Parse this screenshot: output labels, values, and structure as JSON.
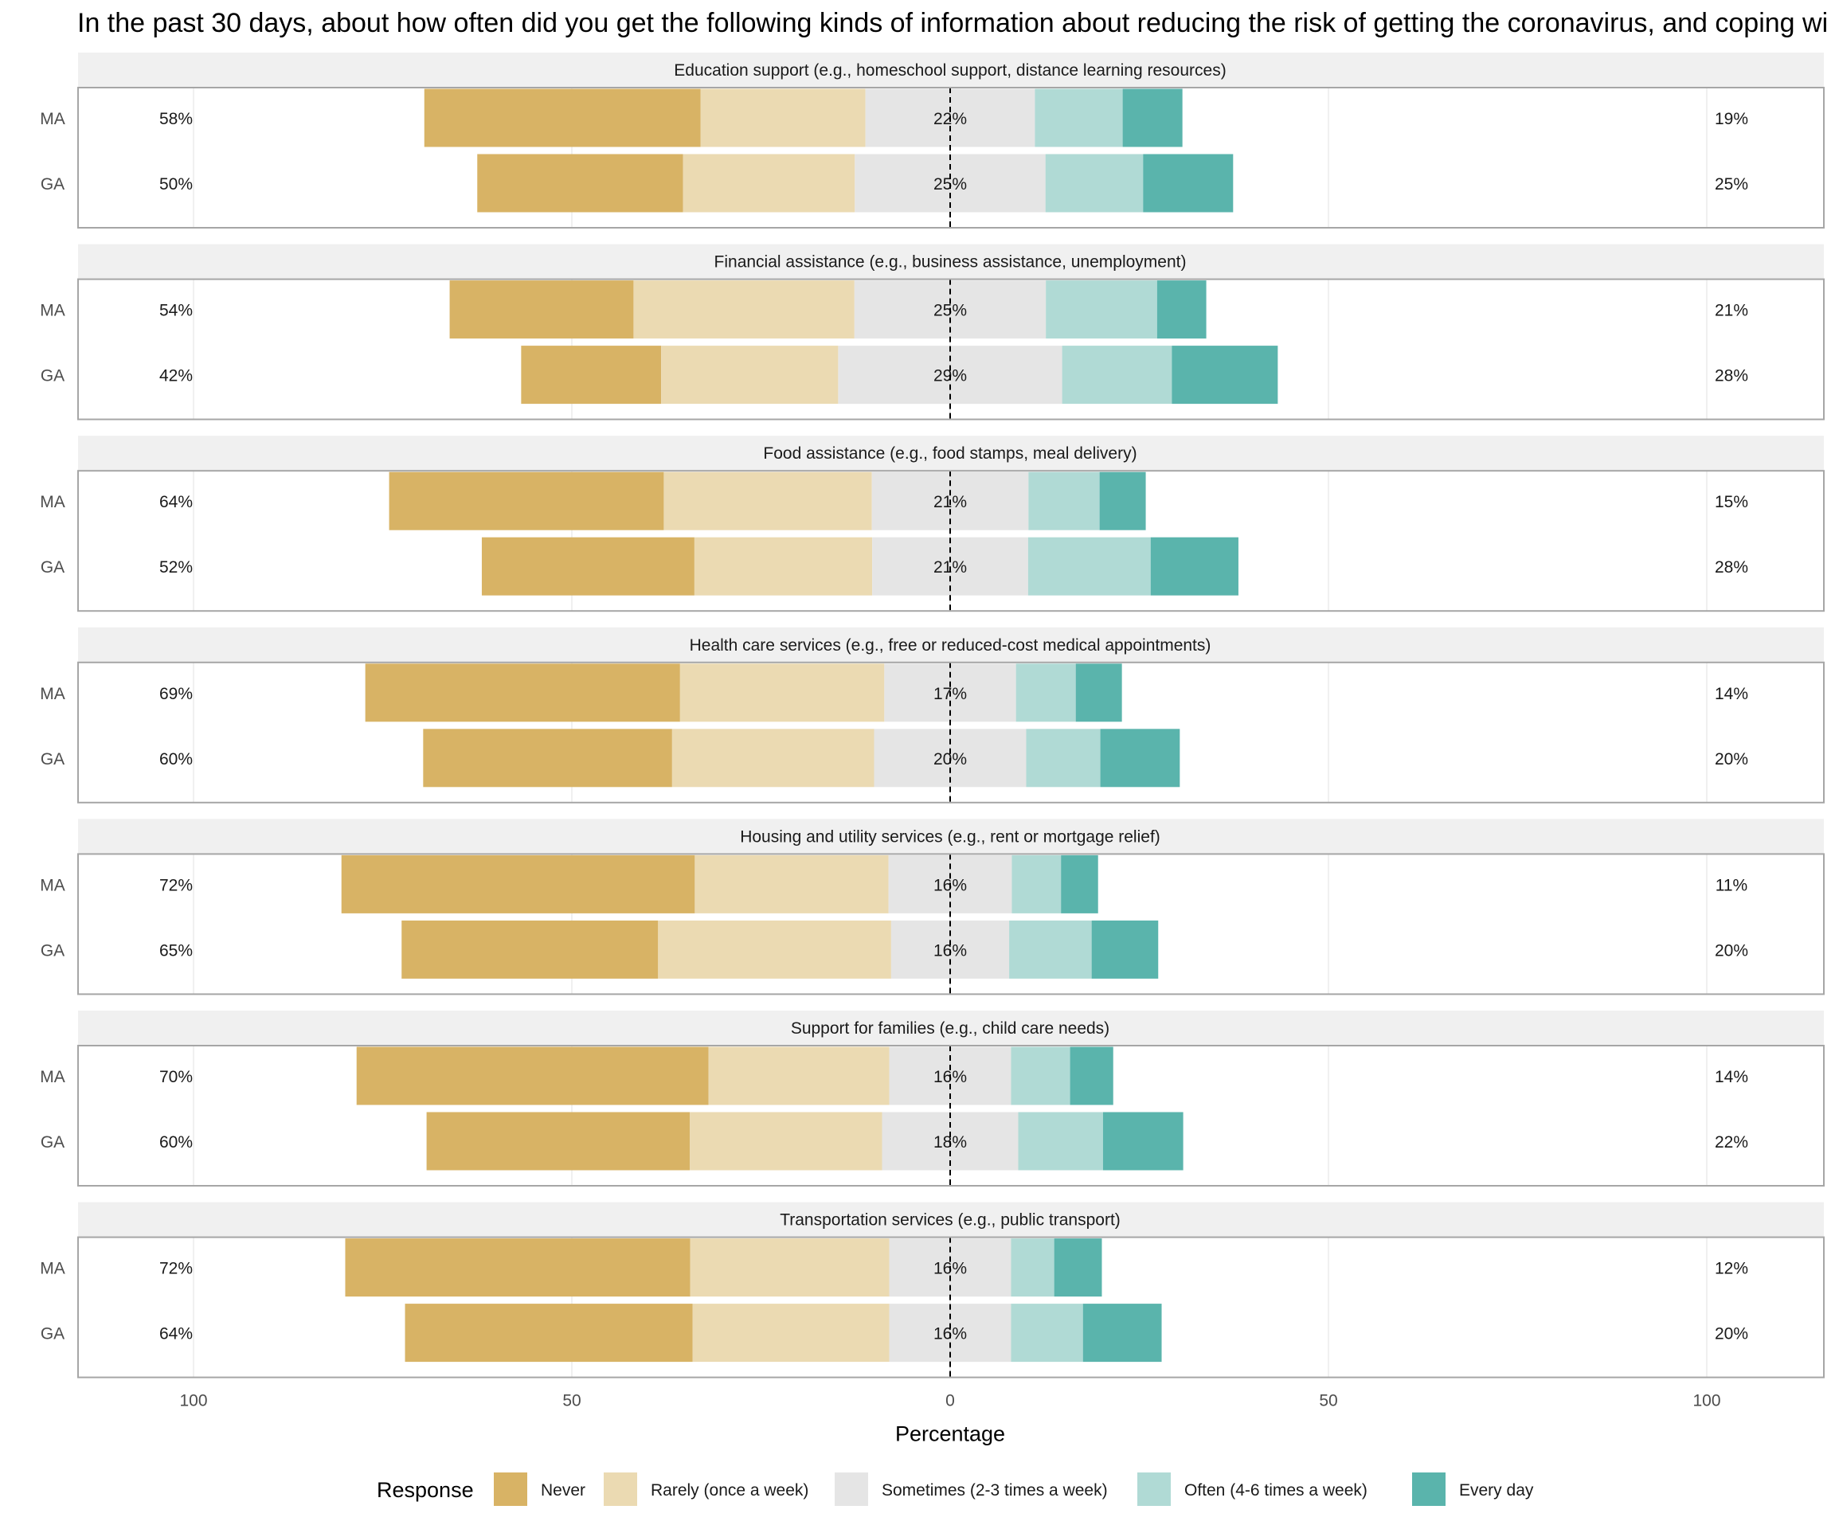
{
  "chart_data": {
    "type": "bar",
    "subtype": "diverging-stacked-bar",
    "title": "In the past 30 days, about how often did you get the following kinds of information about reducing the risk of getting the coronavirus, and coping wi",
    "xlabel": "Percentage",
    "ylabel": "",
    "xlim": [
      -115,
      115
    ],
    "x_ticks": [
      {
        "value": -100,
        "label": "100"
      },
      {
        "value": -50,
        "label": "50"
      },
      {
        "value": 0,
        "label": "0"
      },
      {
        "value": 50,
        "label": "50"
      },
      {
        "value": 100,
        "label": "100"
      }
    ],
    "legend": {
      "title": "Response",
      "position": "bottom",
      "items": [
        {
          "label": "Never",
          "color": "#D8B365"
        },
        {
          "label": "Rarely (once a week)",
          "color": "#EBDAB2"
        },
        {
          "label": "Sometimes (2-3 times a week)",
          "color": "#E5E5E5"
        },
        {
          "label": "Often (4-6 times a week)",
          "color": "#B0DAD5"
        },
        {
          "label": "Every day",
          "color": "#5AB4AC"
        }
      ]
    },
    "panels": [
      {
        "title": "Education support (e.g., homeschool support, distance learning resources)",
        "rows": [
          {
            "label": "MA",
            "values": [
              36.5,
              21.8,
              22.4,
              11.6,
              7.9
            ],
            "low_label": "58%",
            "mid_label": "22%",
            "high_label": "19%"
          },
          {
            "label": "GA",
            "values": [
              27.2,
              22.7,
              25.2,
              12.9,
              11.9
            ],
            "low_label": "50%",
            "mid_label": "25%",
            "high_label": "25%"
          }
        ]
      },
      {
        "title": "Financial assistance (e.g., business assistance, unemployment)",
        "rows": [
          {
            "label": "MA",
            "values": [
              24.3,
              29.2,
              25.3,
              14.7,
              6.5
            ],
            "low_label": "54%",
            "mid_label": "25%",
            "high_label": "21%"
          },
          {
            "label": "GA",
            "values": [
              18.5,
              23.4,
              29.6,
              14.5,
              14.0
            ],
            "low_label": "42%",
            "mid_label": "29%",
            "high_label": "28%"
          }
        ]
      },
      {
        "title": "Food assistance (e.g., food stamps, meal delivery)",
        "rows": [
          {
            "label": "MA",
            "values": [
              36.3,
              27.5,
              20.7,
              9.4,
              6.1
            ],
            "low_label": "64%",
            "mid_label": "21%",
            "high_label": "15%"
          },
          {
            "label": "GA",
            "values": [
              28.1,
              23.5,
              20.6,
              16.2,
              11.6
            ],
            "low_label": "52%",
            "mid_label": "21%",
            "high_label": "28%"
          }
        ]
      },
      {
        "title": "Health care services (e.g., free or reduced-cost medical appointments)",
        "rows": [
          {
            "label": "MA",
            "values": [
              41.6,
              27.0,
              17.4,
              7.9,
              6.1
            ],
            "low_label": "69%",
            "mid_label": "17%",
            "high_label": "14%"
          },
          {
            "label": "GA",
            "values": [
              32.9,
              26.7,
              20.1,
              9.8,
              10.5
            ],
            "low_label": "60%",
            "mid_label": "20%",
            "high_label": "20%"
          }
        ]
      },
      {
        "title": "Housing and utility services (e.g., rent or mortgage relief)",
        "rows": [
          {
            "label": "MA",
            "values": [
              46.7,
              25.6,
              16.3,
              6.5,
              4.9
            ],
            "low_label": "72%",
            "mid_label": "16%",
            "high_label": "11%"
          },
          {
            "label": "GA",
            "values": [
              33.9,
              30.8,
              15.6,
              10.9,
              8.8
            ],
            "low_label": "65%",
            "mid_label": "16%",
            "high_label": "20%"
          }
        ]
      },
      {
        "title": "Support for families (e.g., child care needs)",
        "rows": [
          {
            "label": "MA",
            "values": [
              46.5,
              23.9,
              16.1,
              7.8,
              5.7
            ],
            "low_label": "70%",
            "mid_label": "16%",
            "high_label": "14%"
          },
          {
            "label": "GA",
            "values": [
              34.8,
              25.4,
              18.0,
              11.2,
              10.6
            ],
            "low_label": "60%",
            "mid_label": "18%",
            "high_label": "22%"
          }
        ]
      },
      {
        "title": "Transportation services (e.g., public transport)",
        "rows": [
          {
            "label": "MA",
            "values": [
              45.6,
              26.3,
              16.1,
              5.7,
              6.3
            ],
            "low_label": "72%",
            "mid_label": "16%",
            "high_label": "12%"
          },
          {
            "label": "GA",
            "values": [
              38.0,
              26.0,
              16.1,
              9.5,
              10.4
            ],
            "low_label": "64%",
            "mid_label": "16%",
            "high_label": "20%"
          }
        ]
      }
    ]
  }
}
